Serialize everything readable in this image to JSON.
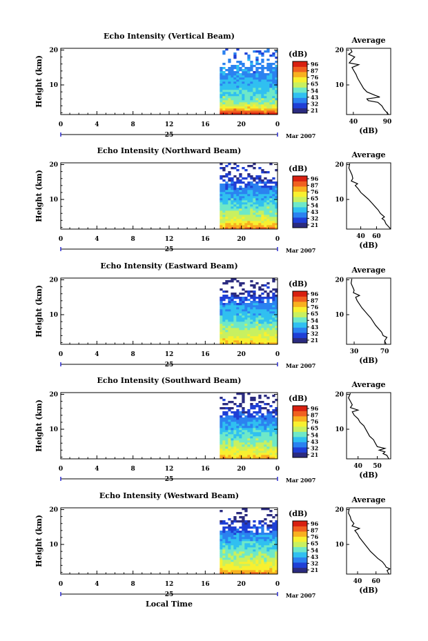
{
  "figure": {
    "bottom_label": "Local Time",
    "colorbar_unit": "(dB)",
    "colorbar_ticks": [
      "96",
      "87",
      "76",
      "65",
      "54",
      "43",
      "32",
      "21"
    ],
    "colormap": [
      "#2b2b80",
      "#1f3fd6",
      "#2b82f0",
      "#30c0f0",
      "#6ee8c8",
      "#c8f060",
      "#f8f030",
      "#f8b020",
      "#f06020",
      "#d82010"
    ],
    "date_label": "Mar 2007",
    "day_label": "25",
    "x_ticks": [
      "0",
      "4",
      "8",
      "12",
      "16",
      "20",
      "0"
    ],
    "y_label": "Height (km)",
    "y_ticks": [
      "20",
      "10"
    ],
    "avg_title": "Average",
    "avg_xlabel": "(dB)"
  },
  "chart_data": [
    {
      "type": "heatmap",
      "title": "Echo Intensity (Vertical Beam)",
      "x_range_hours": [
        0,
        24
      ],
      "data_start_hour": 17.6,
      "y_range_km": [
        1.5,
        20.5
      ],
      "intensity_profile_db": [
        [
          2,
          92
        ],
        [
          3,
          80
        ],
        [
          4,
          68
        ],
        [
          5,
          60
        ],
        [
          6,
          55
        ],
        [
          8,
          52
        ],
        [
          10,
          46
        ],
        [
          12,
          44
        ],
        [
          14,
          40
        ],
        [
          16,
          42
        ],
        [
          18,
          38
        ],
        [
          20,
          36
        ]
      ],
      "avg_profile": {
        "x_ticks": [
          "40",
          "90"
        ],
        "x_range": [
          30,
          95
        ],
        "points": [
          [
            1.5,
            92
          ],
          [
            3,
            85
          ],
          [
            4,
            82
          ],
          [
            5,
            76
          ],
          [
            5.5,
            62
          ],
          [
            6,
            60
          ],
          [
            6.5,
            79
          ],
          [
            7,
            72
          ],
          [
            8,
            60
          ],
          [
            9,
            55
          ],
          [
            10,
            52
          ],
          [
            11,
            49
          ],
          [
            12,
            46
          ],
          [
            13,
            44
          ],
          [
            14,
            41
          ],
          [
            15,
            38
          ],
          [
            15.8,
            48
          ],
          [
            16.3,
            34
          ],
          [
            17,
            37
          ],
          [
            18,
            42
          ],
          [
            18.8,
            33
          ],
          [
            19.5,
            38
          ],
          [
            20.3,
            36
          ]
        ]
      }
    },
    {
      "type": "heatmap",
      "title": "Echo Intensity (Northward Beam)",
      "x_range_hours": [
        0,
        24
      ],
      "data_start_hour": 17.6,
      "y_range_km": [
        1.5,
        20.5
      ],
      "intensity_profile_db": [
        [
          2,
          80
        ],
        [
          3,
          74
        ],
        [
          4,
          68
        ],
        [
          6,
          60
        ],
        [
          8,
          54
        ],
        [
          10,
          48
        ],
        [
          12,
          44
        ],
        [
          14,
          38
        ],
        [
          15.5,
          32
        ],
        [
          16,
          30
        ],
        [
          18,
          28
        ],
        [
          20,
          26
        ]
      ],
      "avg_profile": {
        "x_ticks": [
          "40",
          "60"
        ],
        "x_range": [
          22,
          78
        ],
        "points": [
          [
            1.5,
            78
          ],
          [
            2.5,
            74
          ],
          [
            3,
            72
          ],
          [
            4,
            70
          ],
          [
            4.5,
            67
          ],
          [
            5,
            70
          ],
          [
            6,
            65
          ],
          [
            7,
            62
          ],
          [
            8,
            58
          ],
          [
            9,
            54
          ],
          [
            10,
            50
          ],
          [
            11,
            45
          ],
          [
            12,
            40
          ],
          [
            13,
            37
          ],
          [
            14,
            33
          ],
          [
            14.5,
            36
          ],
          [
            15.3,
            28
          ],
          [
            16,
            30
          ],
          [
            17,
            29
          ],
          [
            18,
            27
          ],
          [
            19,
            25
          ],
          [
            20.3,
            26
          ]
        ]
      }
    },
    {
      "type": "heatmap",
      "title": "Echo Intensity (Eastward Beam)",
      "x_range_hours": [
        0,
        24
      ],
      "data_start_hour": 17.6,
      "y_range_km": [
        1.5,
        20.5
      ],
      "intensity_profile_db": [
        [
          2,
          74
        ],
        [
          3,
          70
        ],
        [
          4,
          66
        ],
        [
          6,
          60
        ],
        [
          8,
          54
        ],
        [
          10,
          48
        ],
        [
          12,
          44
        ],
        [
          14,
          38
        ],
        [
          15.5,
          32
        ],
        [
          16,
          30
        ],
        [
          18,
          26
        ],
        [
          20,
          22
        ]
      ],
      "avg_profile": {
        "x_ticks": [
          "30",
          "70"
        ],
        "x_range": [
          20,
          78
        ],
        "points": [
          [
            1.5,
            72
          ],
          [
            2.5,
            70
          ],
          [
            3.5,
            73
          ],
          [
            4,
            68
          ],
          [
            5,
            66
          ],
          [
            6,
            62
          ],
          [
            7,
            58
          ],
          [
            8,
            55
          ],
          [
            9,
            52
          ],
          [
            10,
            48
          ],
          [
            11,
            44
          ],
          [
            12,
            40
          ],
          [
            13,
            37
          ],
          [
            14,
            34
          ],
          [
            15,
            32
          ],
          [
            15.5,
            37
          ],
          [
            16.3,
            29
          ],
          [
            17,
            30
          ],
          [
            18,
            28
          ],
          [
            19,
            26
          ],
          [
            20.3,
            27
          ]
        ]
      }
    },
    {
      "type": "heatmap",
      "title": "Echo Intensity (Southward Beam)",
      "x_range_hours": [
        0,
        24
      ],
      "data_start_hour": 17.6,
      "y_range_km": [
        1.5,
        20.5
      ],
      "intensity_profile_db": [
        [
          2,
          78
        ],
        [
          3,
          70
        ],
        [
          4,
          66
        ],
        [
          6,
          60
        ],
        [
          8,
          54
        ],
        [
          10,
          48
        ],
        [
          12,
          44
        ],
        [
          14,
          36
        ],
        [
          15.5,
          30
        ],
        [
          16,
          30
        ],
        [
          18,
          26
        ],
        [
          20,
          22
        ]
      ],
      "avg_profile": {
        "x_ticks": [
          "40",
          "50"
        ],
        "x_range": [
          34,
          57
        ],
        "points": [
          [
            1.5,
            56
          ],
          [
            2.5,
            55
          ],
          [
            3,
            53
          ],
          [
            3.5,
            54
          ],
          [
            4,
            51
          ],
          [
            4.5,
            54
          ],
          [
            5,
            50
          ],
          [
            6,
            49
          ],
          [
            7,
            48
          ],
          [
            8,
            46
          ],
          [
            9,
            45
          ],
          [
            10,
            44
          ],
          [
            11,
            43
          ],
          [
            12,
            41
          ],
          [
            13,
            40
          ],
          [
            14,
            38
          ],
          [
            15,
            37
          ],
          [
            15.5,
            40
          ],
          [
            16.2,
            36
          ],
          [
            17,
            37
          ],
          [
            18,
            36
          ],
          [
            19,
            35
          ],
          [
            20.3,
            36
          ]
        ]
      }
    },
    {
      "type": "heatmap",
      "title": "Echo Intensity (Westward Beam)",
      "x_range_hours": [
        0,
        24
      ],
      "data_start_hour": 17.6,
      "y_range_km": [
        1.5,
        20.5
      ],
      "intensity_profile_db": [
        [
          2,
          80
        ],
        [
          3,
          74
        ],
        [
          4,
          70
        ],
        [
          6,
          62
        ],
        [
          8,
          56
        ],
        [
          10,
          50
        ],
        [
          12,
          45
        ],
        [
          14,
          38
        ],
        [
          15.5,
          32
        ],
        [
          16,
          30
        ],
        [
          18,
          26
        ],
        [
          20,
          22
        ]
      ],
      "avg_profile": {
        "x_ticks": [
          "40",
          "60"
        ],
        "x_range": [
          28,
          76
        ],
        "points": [
          [
            1.5,
            74
          ],
          [
            2.5,
            72
          ],
          [
            3,
            75
          ],
          [
            3.5,
            71
          ],
          [
            4,
            70
          ],
          [
            5,
            67
          ],
          [
            6,
            62
          ],
          [
            7,
            58
          ],
          [
            8,
            54
          ],
          [
            9,
            51
          ],
          [
            10,
            48
          ],
          [
            11,
            45
          ],
          [
            12,
            42
          ],
          [
            13,
            40
          ],
          [
            14,
            37
          ],
          [
            14.6,
            42
          ],
          [
            15.3,
            34
          ],
          [
            16,
            36
          ],
          [
            17,
            33
          ],
          [
            18,
            32
          ],
          [
            19,
            30
          ],
          [
            20.3,
            31
          ]
        ]
      }
    }
  ]
}
